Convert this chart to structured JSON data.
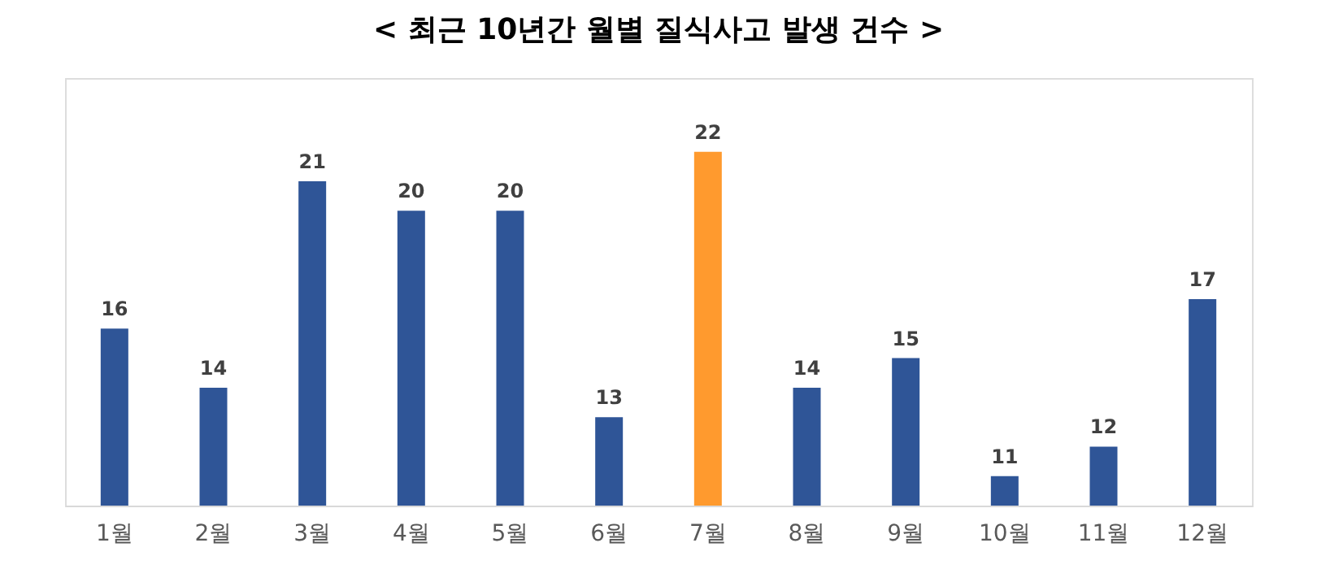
{
  "chart_data": {
    "type": "bar",
    "title": "< 최근 10년간 월별 질식사고 발생 건수 >",
    "categories": [
      "1월",
      "2월",
      "3월",
      "4월",
      "5월",
      "6월",
      "7월",
      "8월",
      "9월",
      "10월",
      "11월",
      "12월"
    ],
    "values": [
      16,
      14,
      21,
      20,
      20,
      13,
      22,
      14,
      15,
      11,
      12,
      17
    ],
    "colors": [
      "#2f5597",
      "#2f5597",
      "#2f5597",
      "#2f5597",
      "#2f5597",
      "#2f5597",
      "#ff9a2e",
      "#2f5597",
      "#2f5597",
      "#2f5597",
      "#2f5597",
      "#2f5597"
    ],
    "ylim": [
      10,
      24.5
    ],
    "data_labels": true,
    "grid": false,
    "tick_labels": "x"
  }
}
